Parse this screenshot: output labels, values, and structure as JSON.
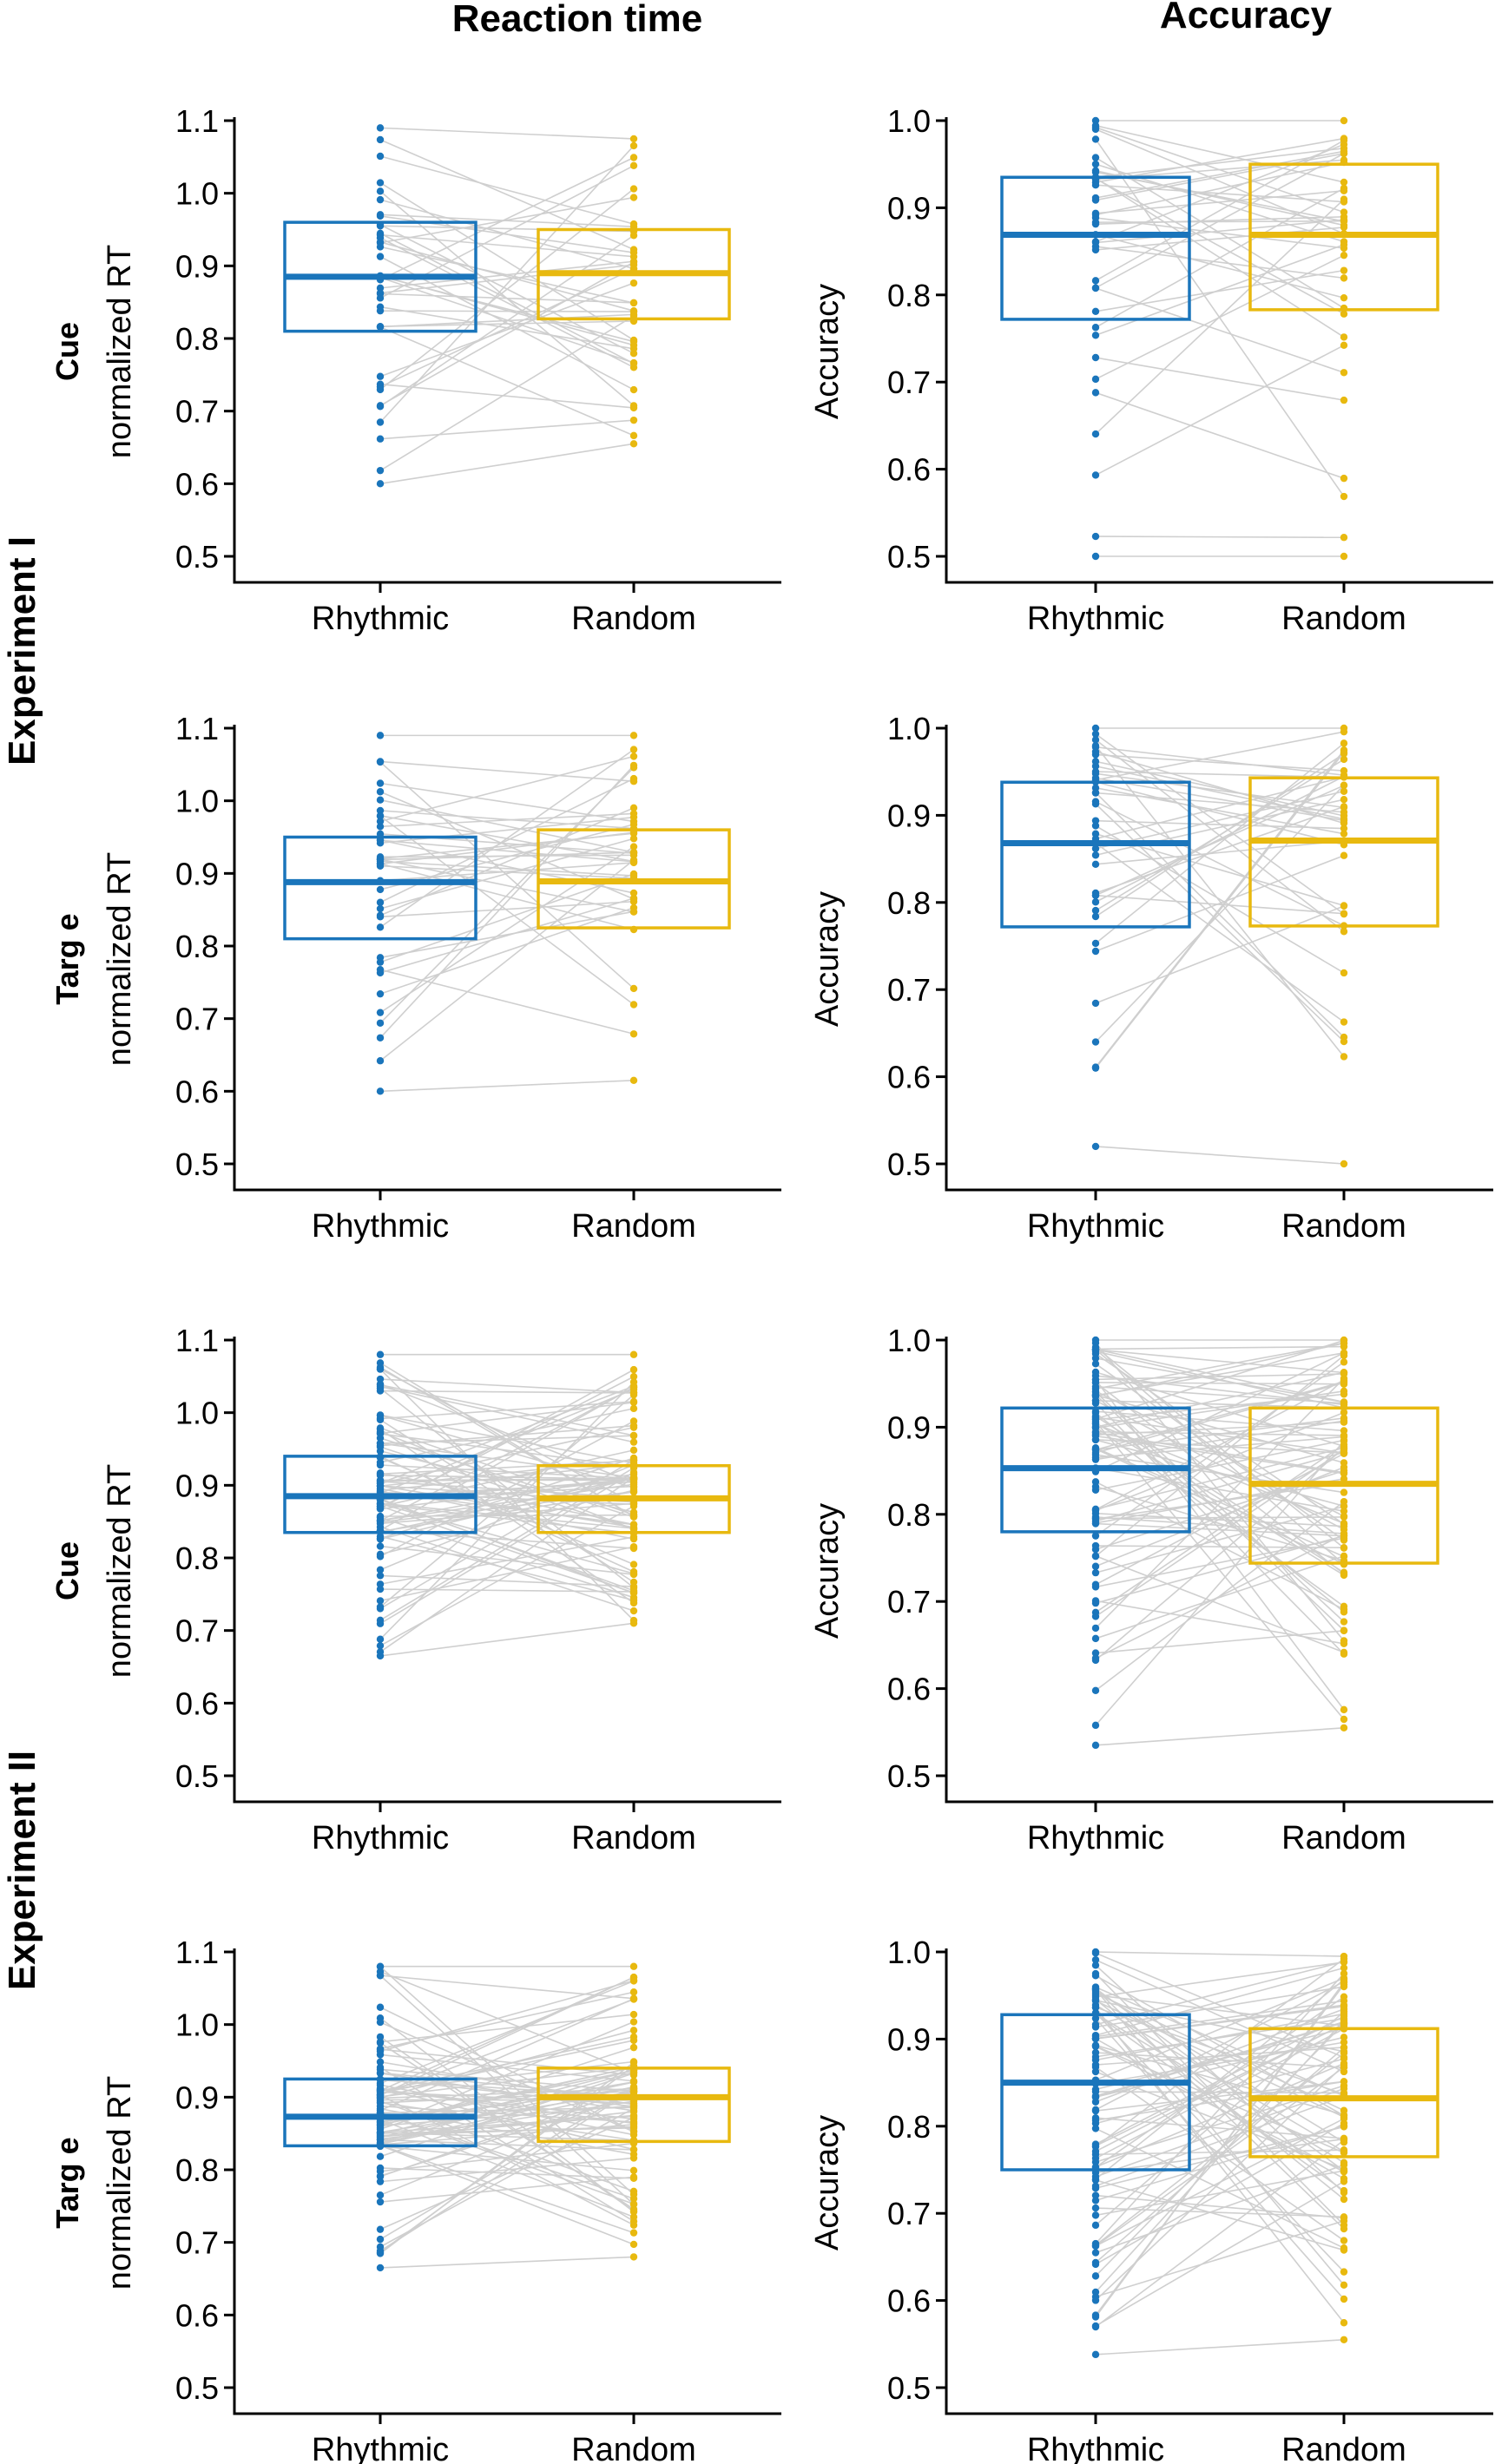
{
  "columns": [
    "Reaction time",
    "Accuracy"
  ],
  "experiments": [
    "Experiment I",
    "Experiment II"
  ],
  "colors": {
    "rhythmic": "#1a75bb",
    "random": "#e8b90f",
    "pair_line": "#cfcfcf",
    "axis": "#000000"
  },
  "chart_data": [
    {
      "type": "box",
      "experiment": "Experiment I",
      "column": "Reaction time",
      "row": "Cue",
      "ylabel": "normalized RT",
      "ylim": [
        0.5,
        1.1
      ],
      "yticks": [
        "0.5",
        "0.6",
        "0.7",
        "0.8",
        "0.9",
        "1.0",
        "1.1"
      ],
      "categories": [
        "Rhythmic",
        "Random"
      ],
      "series": [
        {
          "name": "Rhythmic",
          "q1": 0.81,
          "median": 0.885,
          "q3": 0.96,
          "min": 0.6,
          "max": 1.09
        },
        {
          "name": "Random",
          "q1": 0.827,
          "median": 0.89,
          "q3": 0.95,
          "min": 0.655,
          "max": 1.075
        }
      ],
      "n_pairs": 40
    },
    {
      "type": "box",
      "experiment": "Experiment I",
      "column": "Accuracy",
      "row": "Cue",
      "ylabel": "Accuracy",
      "ylim": [
        0.5,
        1.0
      ],
      "yticks": [
        "0.5",
        "0.6",
        "0.7",
        "0.8",
        "0.9",
        "1.0"
      ],
      "categories": [
        "Rhythmic",
        "Random"
      ],
      "series": [
        {
          "name": "Rhythmic",
          "q1": 0.772,
          "median": 0.869,
          "q3": 0.935,
          "min": 0.5,
          "max": 1.0
        },
        {
          "name": "Random",
          "q1": 0.783,
          "median": 0.869,
          "q3": 0.95,
          "min": 0.5,
          "max": 1.0
        }
      ],
      "n_pairs": 40
    },
    {
      "type": "box",
      "experiment": "Experiment I",
      "column": "Reaction time",
      "row": "Targ e",
      "ylabel": "normalized RT",
      "ylim": [
        0.5,
        1.1
      ],
      "yticks": [
        "0.5",
        "0.6",
        "0.7",
        "0.8",
        "0.9",
        "1.0",
        "1.1"
      ],
      "categories": [
        "Rhythmic",
        "Random"
      ],
      "series": [
        {
          "name": "Rhythmic",
          "q1": 0.81,
          "median": 0.888,
          "q3": 0.95,
          "min": 0.6,
          "max": 1.09
        },
        {
          "name": "Random",
          "q1": 0.825,
          "median": 0.889,
          "q3": 0.96,
          "min": 0.615,
          "max": 1.09
        }
      ],
      "n_pairs": 40
    },
    {
      "type": "box",
      "experiment": "Experiment I",
      "column": "Accuracy",
      "row": "Targ e",
      "ylabel": "Accuracy",
      "ylim": [
        0.5,
        1.0
      ],
      "yticks": [
        "0.5",
        "0.6",
        "0.7",
        "0.8",
        "0.9",
        "1.0"
      ],
      "categories": [
        "Rhythmic",
        "Random"
      ],
      "series": [
        {
          "name": "Rhythmic",
          "q1": 0.772,
          "median": 0.868,
          "q3": 0.938,
          "min": 0.52,
          "max": 1.0
        },
        {
          "name": "Random",
          "q1": 0.773,
          "median": 0.871,
          "q3": 0.943,
          "min": 0.5,
          "max": 1.0
        }
      ],
      "n_pairs": 40
    },
    {
      "type": "box",
      "experiment": "Experiment II",
      "column": "Reaction time",
      "row": "Cue",
      "ylabel": "normalized RT",
      "ylim": [
        0.5,
        1.1
      ],
      "yticks": [
        "0.5",
        "0.6",
        "0.7",
        "0.8",
        "0.9",
        "1.0",
        "1.1"
      ],
      "categories": [
        "Rhythmic",
        "Random"
      ],
      "series": [
        {
          "name": "Rhythmic",
          "q1": 0.835,
          "median": 0.885,
          "q3": 0.94,
          "min": 0.665,
          "max": 1.08
        },
        {
          "name": "Random",
          "q1": 0.835,
          "median": 0.882,
          "q3": 0.927,
          "min": 0.71,
          "max": 1.08
        }
      ],
      "n_pairs": 90
    },
    {
      "type": "box",
      "experiment": "Experiment II",
      "column": "Accuracy",
      "row": "Cue",
      "ylabel": "Accuracy",
      "ylim": [
        0.5,
        1.0
      ],
      "yticks": [
        "0.5",
        "0.6",
        "0.7",
        "0.8",
        "0.9",
        "1.0"
      ],
      "categories": [
        "Rhythmic",
        "Random"
      ],
      "series": [
        {
          "name": "Rhythmic",
          "q1": 0.78,
          "median": 0.853,
          "q3": 0.922,
          "min": 0.535,
          "max": 1.0
        },
        {
          "name": "Random",
          "q1": 0.744,
          "median": 0.835,
          "q3": 0.922,
          "min": 0.555,
          "max": 1.0
        }
      ],
      "n_pairs": 90
    },
    {
      "type": "box",
      "experiment": "Experiment II",
      "column": "Reaction time",
      "row": "Targ e",
      "ylabel": "normalized RT",
      "ylim": [
        0.5,
        1.1
      ],
      "yticks": [
        "0.5",
        "0.6",
        "0.7",
        "0.8",
        "0.9",
        "1.0",
        "1.1"
      ],
      "categories": [
        "Rhythmic",
        "Random"
      ],
      "series": [
        {
          "name": "Rhythmic",
          "q1": 0.833,
          "median": 0.873,
          "q3": 0.925,
          "min": 0.665,
          "max": 1.08
        },
        {
          "name": "Random",
          "q1": 0.839,
          "median": 0.9,
          "q3": 0.94,
          "min": 0.68,
          "max": 1.08
        }
      ],
      "n_pairs": 90
    },
    {
      "type": "box",
      "experiment": "Experiment II",
      "column": "Accuracy",
      "row": "Targ e",
      "ylabel": "Accuracy",
      "ylim": [
        0.5,
        1.0
      ],
      "yticks": [
        "0.5",
        "0.6",
        "0.7",
        "0.8",
        "0.9",
        "1.0"
      ],
      "categories": [
        "Rhythmic",
        "Random"
      ],
      "series": [
        {
          "name": "Rhythmic",
          "q1": 0.75,
          "median": 0.85,
          "q3": 0.928,
          "min": 0.538,
          "max": 1.0
        },
        {
          "name": "Random",
          "q1": 0.765,
          "median": 0.832,
          "q3": 0.912,
          "min": 0.555,
          "max": 0.995
        }
      ],
      "n_pairs": 90
    }
  ]
}
